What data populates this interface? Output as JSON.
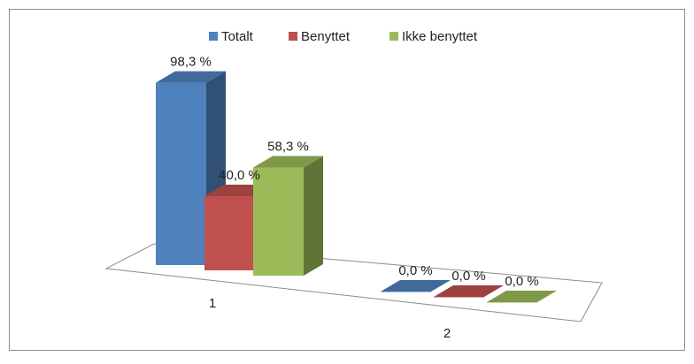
{
  "chart_data": {
    "type": "bar",
    "style": "3d-clustered-column",
    "title": "",
    "xlabel": "",
    "ylabel": "",
    "categories": [
      "1",
      "2"
    ],
    "series": [
      {
        "name": "Totalt",
        "values": [
          98.3,
          0.0
        ],
        "labels": [
          "98,3 %",
          "0,0 %"
        ],
        "color": "#4f81bd"
      },
      {
        "name": "Benyttet",
        "values": [
          40.0,
          0.0
        ],
        "labels": [
          "40,0 %",
          "0,0 %"
        ],
        "color": "#c0504d"
      },
      {
        "name": "Ikke benyttet",
        "values": [
          58.3,
          0.0
        ],
        "labels": [
          "58,3 %",
          "0,0 %"
        ],
        "color": "#9bbb59"
      }
    ],
    "ylim": [
      0,
      100
    ],
    "grid": false,
    "legend_position": "top"
  }
}
